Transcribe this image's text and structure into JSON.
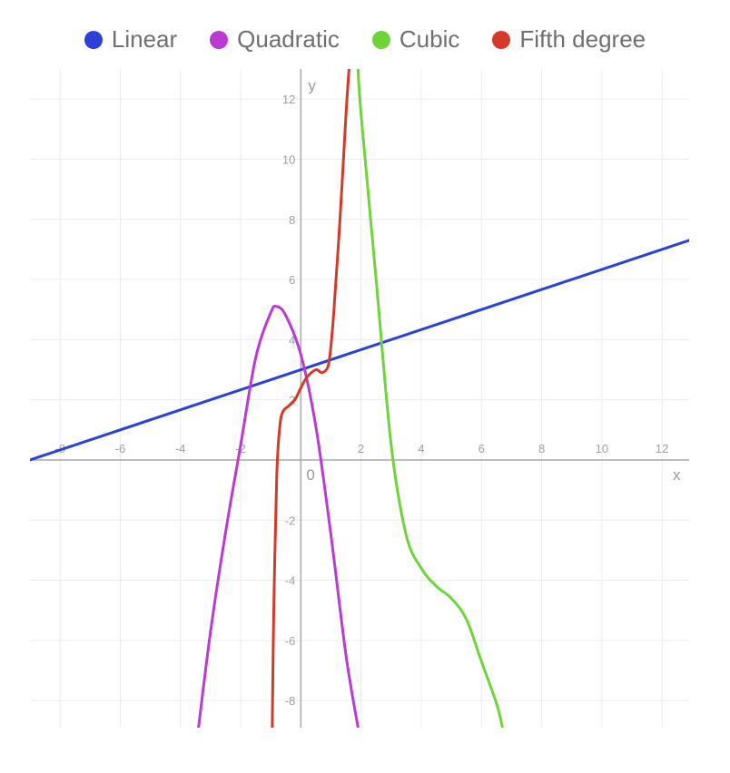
{
  "chart_data": {
    "type": "line",
    "xlabel": "x",
    "ylabel": "y",
    "origin_label": "0",
    "xlim": [
      -9,
      12.9
    ],
    "ylim": [
      -8.9,
      13
    ],
    "grid": true,
    "legend_position": "top",
    "x_ticks": [
      -8,
      -6,
      -4,
      -2,
      2,
      4,
      6,
      8,
      10,
      12
    ],
    "y_ticks": [
      -8,
      -6,
      -4,
      -2,
      2,
      4,
      6,
      8,
      10,
      12
    ],
    "series": [
      {
        "name": "Linear",
        "color": "#2a40d6",
        "x": [
          -9,
          12.9
        ],
        "y": [
          0,
          7.3
        ]
      },
      {
        "name": "Quadratic",
        "color": "#bb3ad4",
        "x": [
          -3.4,
          -3,
          -2.5,
          -2,
          -1.5,
          -1,
          -0.8,
          -0.5,
          0,
          0.5,
          1,
          1.5,
          1.9
        ],
        "y": [
          -8.9,
          -5.7,
          -2.4,
          0.5,
          3.4,
          4.9,
          5.1,
          4.8,
          3.5,
          1.1,
          -2.5,
          -6.5,
          -8.9
        ]
      },
      {
        "name": "Cubic",
        "color": "#6ed43a",
        "x": [
          1.9,
          2,
          2.5,
          3,
          3.5,
          4,
          4.5,
          5,
          5.5,
          6,
          6.5,
          6.7
        ],
        "y": [
          13,
          11.5,
          6,
          0.5,
          -2.5,
          -3.6,
          -4.2,
          -4.6,
          -5.3,
          -6.7,
          -8.1,
          -8.9
        ],
        "note": ""
      },
      {
        "name": "Fifth degree",
        "color": "#d43a2a",
        "x": [
          -0.95,
          -0.9,
          -0.8,
          -0.7,
          -0.6,
          -0.4,
          -0.2,
          0,
          0.2,
          0.5,
          0.7,
          0.9,
          1.0,
          1.1,
          1.3,
          1.5,
          1.6
        ],
        "y": [
          -8.9,
          -5,
          -0.5,
          1.1,
          1.6,
          1.8,
          2.0,
          2.4,
          2.75,
          3.0,
          2.9,
          3.1,
          3.8,
          5,
          8,
          11.5,
          13
        ]
      }
    ]
  }
}
